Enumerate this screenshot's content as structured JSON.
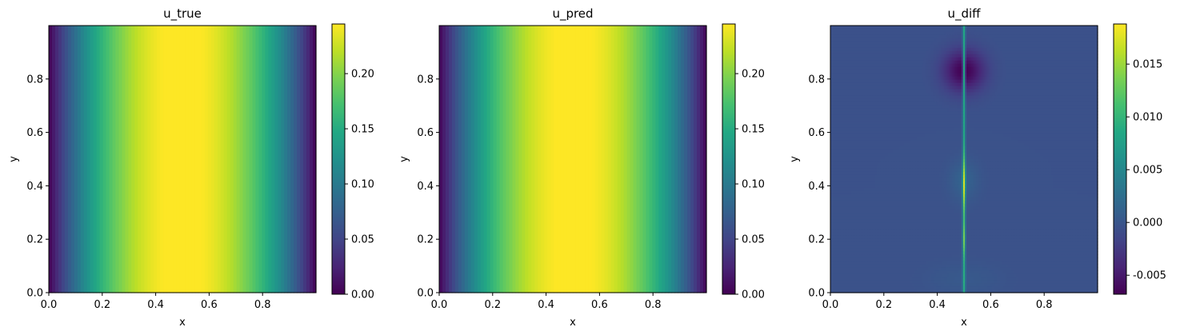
{
  "chart_data": [
    {
      "type": "heatmap",
      "title": "u_true",
      "xlabel": "x",
      "ylabel": "y",
      "xlim": [
        0,
        1
      ],
      "ylim": [
        0,
        1
      ],
      "xticks": [
        "0.0",
        "0.2",
        "0.4",
        "0.6",
        "0.8"
      ],
      "yticks": [
        "0.0",
        "0.2",
        "0.4",
        "0.6",
        "0.8"
      ],
      "colormap": "viridis",
      "colorbar": {
        "range": [
          0.0,
          0.245
        ],
        "ticks": [
          "0.00",
          "0.05",
          "0.10",
          "0.15",
          "0.20"
        ],
        "tick_values": [
          0.0,
          0.05,
          0.1,
          0.15,
          0.2
        ]
      },
      "field": "x(1-x) varying only along x, peak 0.25 at x = 0.5"
    },
    {
      "type": "heatmap",
      "title": "u_pred",
      "xlabel": "x",
      "ylabel": "y",
      "xlim": [
        0,
        1
      ],
      "ylim": [
        0,
        1
      ],
      "xticks": [
        "0.0",
        "0.2",
        "0.4",
        "0.6",
        "0.8"
      ],
      "yticks": [
        "0.0",
        "0.2",
        "0.4",
        "0.6",
        "0.8"
      ],
      "colormap": "viridis",
      "colorbar": {
        "range": [
          0.0,
          0.245
        ],
        "ticks": [
          "0.00",
          "0.05",
          "0.10",
          "0.15",
          "0.20"
        ],
        "tick_values": [
          0.0,
          0.05,
          0.1,
          0.15,
          0.2
        ]
      },
      "field": "approximately x(1-x), peak near x = 0.5"
    },
    {
      "type": "heatmap",
      "title": "u_diff",
      "xlabel": "x",
      "ylabel": "y",
      "xlim": [
        0,
        1
      ],
      "ylim": [
        0,
        1
      ],
      "xticks": [
        "0.0",
        "0.2",
        "0.4",
        "0.6",
        "0.8"
      ],
      "yticks": [
        "0.0",
        "0.2",
        "0.4",
        "0.6",
        "0.8"
      ],
      "colormap": "viridis",
      "colorbar": {
        "range": [
          -0.0068,
          0.0188
        ],
        "ticks": [
          "-0.005",
          "0.000",
          "0.005",
          "0.010",
          "0.015"
        ],
        "tick_values": [
          -0.005,
          0.0,
          0.005,
          0.01,
          0.015
        ]
      },
      "field": "near zero background, thin positive ridge at x = 0.5 peaking near y = 0.2 and y = 0.4, negative region near x = 0.5, y = 0.8"
    }
  ]
}
